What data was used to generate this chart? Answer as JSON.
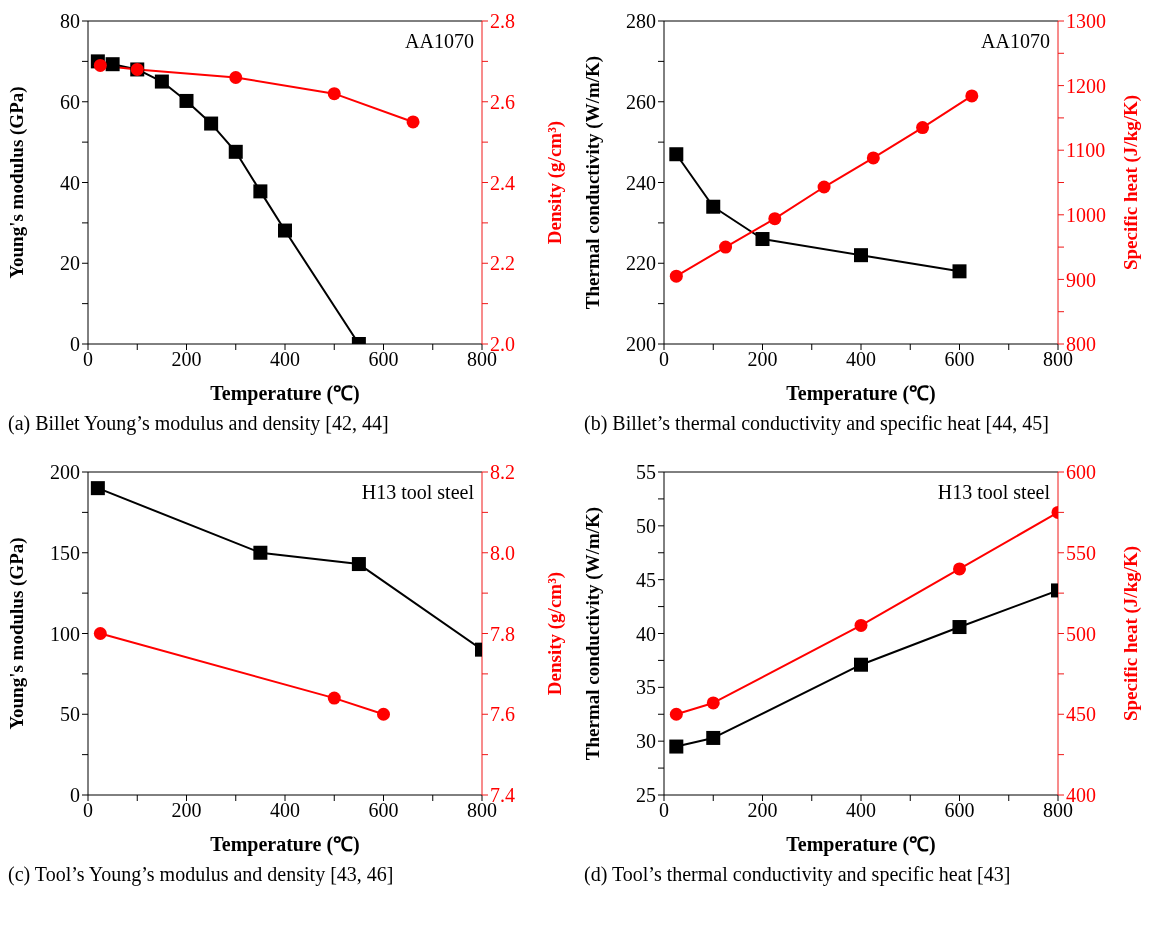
{
  "chart_data": [
    {
      "type": "line",
      "xlabel": "Temperature (℃)",
      "ylabel": "Young's modulus (GPa)",
      "y2label": "Density (g/cm³)",
      "annotations": [
        "AA1070",
        "(a) Billet Young’s modulus and density [42, 44]"
      ],
      "xlim": [
        0,
        800
      ],
      "xticks": [
        0,
        {
          "value": 100,
          "label": null
        },
        200,
        {
          "value": 300,
          "label": null
        },
        400,
        {
          "value": 500,
          "label": null
        },
        600,
        {
          "value": 700,
          "label": null
        },
        800
      ],
      "ylim": [
        0,
        80
      ],
      "yticks": [
        0,
        {
          "value": 10,
          "label": null
        },
        20,
        {
          "value": 30,
          "label": null
        },
        40,
        {
          "value": 50,
          "label": null
        },
        60,
        {
          "value": 70,
          "label": null
        },
        80
      ],
      "y2lim": [
        2.0,
        2.8
      ],
      "y2ticks": [
        {
          "value": 2.0,
          "label": "2.0"
        },
        {
          "value": 2.1,
          "label": null
        },
        {
          "value": 2.2,
          "label": "2.2"
        },
        {
          "value": 2.3,
          "label": null
        },
        {
          "value": 2.4,
          "label": "2.4"
        },
        {
          "value": 2.5,
          "label": null
        },
        {
          "value": 2.6,
          "label": "2.6"
        },
        {
          "value": 2.7,
          "label": null
        },
        {
          "value": 2.8,
          "label": "2.8"
        }
      ],
      "series": [
        {
          "color": "#000000",
          "marker": "square",
          "x": [
            20,
            50,
            100,
            150,
            200,
            250,
            300,
            350,
            400,
            550
          ],
          "values": [
            70,
            69.3,
            68,
            65,
            60.2,
            54.6,
            47.6,
            37.8,
            28.1,
            0
          ]
        },
        {
          "color": "#ff0000",
          "marker": "circle",
          "axis": "y2",
          "x": [
            25,
            100,
            300,
            500,
            660
          ],
          "values": [
            2.69,
            2.68,
            2.66,
            2.62,
            2.55
          ]
        }
      ]
    },
    {
      "type": "line",
      "xlabel": "Temperature (℃)",
      "ylabel": "Thermal conductivity (W/m/K)",
      "y2label": "Specific heat (J/kg/K)",
      "annotations": [
        "AA1070",
        "(b) Billet’s thermal conductivity and specific heat [44, 45]"
      ],
      "xlim": [
        0,
        800
      ],
      "xticks": [
        0,
        {
          "value": 100,
          "label": null
        },
        200,
        {
          "value": 300,
          "label": null
        },
        400,
        {
          "value": 500,
          "label": null
        },
        600,
        {
          "value": 700,
          "label": null
        },
        800
      ],
      "ylim": [
        200,
        280
      ],
      "yticks": [
        200,
        {
          "value": 210,
          "label": null
        },
        220,
        {
          "value": 230,
          "label": null
        },
        240,
        {
          "value": 250,
          "label": null
        },
        260,
        {
          "value": 270,
          "label": null
        },
        280
      ],
      "y2lim": [
        800,
        1300
      ],
      "y2ticks": [
        800,
        {
          "value": 850,
          "label": null
        },
        900,
        {
          "value": 950,
          "label": null
        },
        1000,
        {
          "value": 1050,
          "label": null
        },
        1100,
        {
          "value": 1150,
          "label": null
        },
        1200,
        {
          "value": 1250,
          "label": null
        },
        1300
      ],
      "series": [
        {
          "color": "#000000",
          "marker": "square",
          "x": [
            25,
            100,
            200,
            400,
            600
          ],
          "values": [
            247,
            234,
            226,
            222,
            218
          ]
        },
        {
          "color": "#ff0000",
          "marker": "circle",
          "axis": "y2",
          "x": [
            25,
            125,
            225,
            325,
            425,
            525,
            625
          ],
          "values": [
            905,
            950,
            994,
            1043,
            1088,
            1135,
            1184
          ]
        }
      ]
    },
    {
      "type": "line",
      "xlabel": "Temperature (℃)",
      "ylabel": "Young's modulus (GPa)",
      "y2label": "Density (g/cm³)",
      "annotations": [
        "H13 tool steel",
        "(c) Tool’s Young’s modulus and density [43, 46]"
      ],
      "xlim": [
        0,
        800
      ],
      "xticks": [
        0,
        {
          "value": 100,
          "label": null
        },
        200,
        {
          "value": 300,
          "label": null
        },
        400,
        {
          "value": 500,
          "label": null
        },
        600,
        {
          "value": 700,
          "label": null
        },
        800
      ],
      "ylim": [
        0,
        200
      ],
      "yticks": [
        0,
        {
          "value": 25,
          "label": null
        },
        50,
        {
          "value": 75,
          "label": null
        },
        100,
        {
          "value": 125,
          "label": null
        },
        150,
        {
          "value": 175,
          "label": null
        },
        200
      ],
      "y2lim": [
        7.4,
        8.2
      ],
      "y2ticks": [
        {
          "value": 7.4,
          "label": "7.4"
        },
        {
          "value": 7.5,
          "label": null
        },
        {
          "value": 7.6,
          "label": "7.6"
        },
        {
          "value": 7.7,
          "label": null
        },
        {
          "value": 7.8,
          "label": "7.8"
        },
        {
          "value": 7.9,
          "label": null
        },
        {
          "value": 8.0,
          "label": "8.0"
        },
        {
          "value": 8.1,
          "label": null
        },
        {
          "value": 8.2,
          "label": "8.2"
        }
      ],
      "series": [
        {
          "color": "#000000",
          "marker": "square",
          "x": [
            20,
            350,
            550,
            800
          ],
          "values": [
            190,
            150,
            143,
            90
          ]
        },
        {
          "color": "#ff0000",
          "marker": "circle",
          "axis": "y2",
          "x": [
            25,
            500,
            600
          ],
          "values": [
            7.8,
            7.64,
            7.6
          ]
        }
      ]
    },
    {
      "type": "line",
      "xlabel": "Temperature (℃)",
      "ylabel": "Thermal conductivity (W/m/K)",
      "y2label": "Specific heat (J/kg/K)",
      "annotations": [
        "H13 tool steel",
        "(d) Tool’s thermal conductivity and specific heat [43]"
      ],
      "xlim": [
        0,
        800
      ],
      "xticks": [
        0,
        {
          "value": 100,
          "label": null
        },
        200,
        {
          "value": 300,
          "label": null
        },
        400,
        {
          "value": 500,
          "label": null
        },
        600,
        {
          "value": 700,
          "label": null
        },
        800
      ],
      "ylim": [
        25,
        55
      ],
      "yticks": [
        25,
        {
          "value": 27.5,
          "label": null
        },
        30,
        {
          "value": 32.5,
          "label": null
        },
        35,
        {
          "value": 37.5,
          "label": null
        },
        40,
        {
          "value": 42.5,
          "label": null
        },
        45,
        {
          "value": 47.5,
          "label": null
        },
        50,
        {
          "value": 52.5,
          "label": null
        },
        55
      ],
      "y2lim": [
        400,
        600
      ],
      "y2ticks": [
        400,
        {
          "value": 425,
          "label": null
        },
        450,
        {
          "value": 475,
          "label": null
        },
        500,
        {
          "value": 525,
          "label": null
        },
        550,
        {
          "value": 575,
          "label": null
        },
        600
      ],
      "series": [
        {
          "color": "#000000",
          "marker": "square",
          "x": [
            25,
            100,
            400,
            600,
            800
          ],
          "values": [
            29.5,
            30.3,
            37.1,
            40.6,
            44.0
          ]
        },
        {
          "color": "#ff0000",
          "marker": "circle",
          "axis": "y2",
          "x": [
            25,
            100,
            400,
            600,
            800
          ],
          "values": [
            450,
            457,
            505,
            540,
            575
          ]
        }
      ]
    }
  ]
}
